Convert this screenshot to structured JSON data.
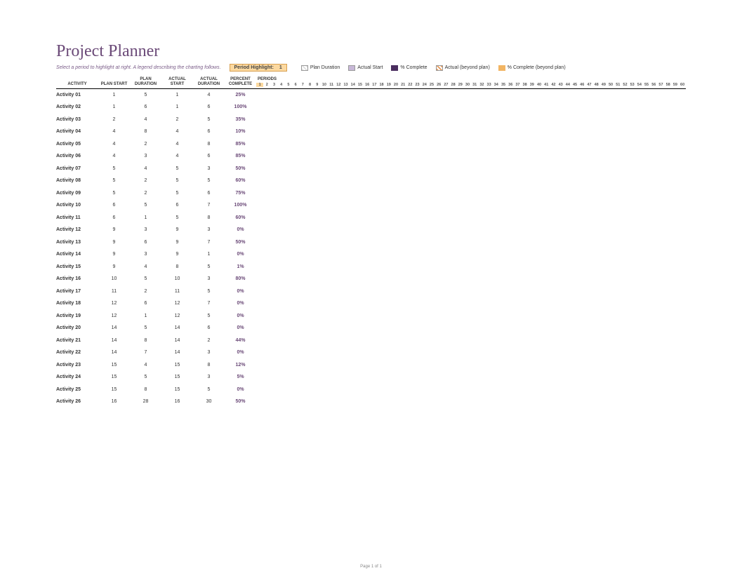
{
  "title": "Project Planner",
  "subtitle": "Select a period to highlight at right. A legend describing the charting follows.",
  "period_highlight": {
    "label": "Period Highlight:",
    "value": "1"
  },
  "legend": {
    "plan_duration": "Plan Duration",
    "actual_start": "Actual Start",
    "percent_complete": "% Complete",
    "actual_beyond": "Actual (beyond plan)",
    "percent_beyond": "% Complete (beyond plan)"
  },
  "columns": {
    "activity": "ACTIVITY",
    "plan_start": "PLAN START",
    "plan_duration": "PLAN DURATION",
    "actual_start": "ACTUAL START",
    "actual_duration": "ACTUAL DURATION",
    "percent_complete": "PERCENT COMPLETE",
    "periods": "PERIODS"
  },
  "period_count": 60,
  "highlighted_period": 1,
  "rows": [
    {
      "activity": "Activity 01",
      "plan_start": "1",
      "plan_duration": "5",
      "actual_start": "1",
      "actual_duration": "4",
      "percent": "25%"
    },
    {
      "activity": "Activity 02",
      "plan_start": "1",
      "plan_duration": "6",
      "actual_start": "1",
      "actual_duration": "6",
      "percent": "100%"
    },
    {
      "activity": "Activity 03",
      "plan_start": "2",
      "plan_duration": "4",
      "actual_start": "2",
      "actual_duration": "5",
      "percent": "35%"
    },
    {
      "activity": "Activity 04",
      "plan_start": "4",
      "plan_duration": "8",
      "actual_start": "4",
      "actual_duration": "6",
      "percent": "10%"
    },
    {
      "activity": "Activity 05",
      "plan_start": "4",
      "plan_duration": "2",
      "actual_start": "4",
      "actual_duration": "8",
      "percent": "85%"
    },
    {
      "activity": "Activity 06",
      "plan_start": "4",
      "plan_duration": "3",
      "actual_start": "4",
      "actual_duration": "6",
      "percent": "85%"
    },
    {
      "activity": "Activity 07",
      "plan_start": "5",
      "plan_duration": "4",
      "actual_start": "5",
      "actual_duration": "3",
      "percent": "50%"
    },
    {
      "activity": "Activity 08",
      "plan_start": "5",
      "plan_duration": "2",
      "actual_start": "5",
      "actual_duration": "5",
      "percent": "60%"
    },
    {
      "activity": "Activity 09",
      "plan_start": "5",
      "plan_duration": "2",
      "actual_start": "5",
      "actual_duration": "6",
      "percent": "75%"
    },
    {
      "activity": "Activity 10",
      "plan_start": "6",
      "plan_duration": "5",
      "actual_start": "6",
      "actual_duration": "7",
      "percent": "100%"
    },
    {
      "activity": "Activity 11",
      "plan_start": "6",
      "plan_duration": "1",
      "actual_start": "5",
      "actual_duration": "8",
      "percent": "60%"
    },
    {
      "activity": "Activity 12",
      "plan_start": "9",
      "plan_duration": "3",
      "actual_start": "9",
      "actual_duration": "3",
      "percent": "0%"
    },
    {
      "activity": "Activity 13",
      "plan_start": "9",
      "plan_duration": "6",
      "actual_start": "9",
      "actual_duration": "7",
      "percent": "50%"
    },
    {
      "activity": "Activity 14",
      "plan_start": "9",
      "plan_duration": "3",
      "actual_start": "9",
      "actual_duration": "1",
      "percent": "0%"
    },
    {
      "activity": "Activity 15",
      "plan_start": "9",
      "plan_duration": "4",
      "actual_start": "8",
      "actual_duration": "5",
      "percent": "1%"
    },
    {
      "activity": "Activity 16",
      "plan_start": "10",
      "plan_duration": "5",
      "actual_start": "10",
      "actual_duration": "3",
      "percent": "80%"
    },
    {
      "activity": "Activity 17",
      "plan_start": "11",
      "plan_duration": "2",
      "actual_start": "11",
      "actual_duration": "5",
      "percent": "0%"
    },
    {
      "activity": "Activity 18",
      "plan_start": "12",
      "plan_duration": "6",
      "actual_start": "12",
      "actual_duration": "7",
      "percent": "0%"
    },
    {
      "activity": "Activity 19",
      "plan_start": "12",
      "plan_duration": "1",
      "actual_start": "12",
      "actual_duration": "5",
      "percent": "0%"
    },
    {
      "activity": "Activity 20",
      "plan_start": "14",
      "plan_duration": "5",
      "actual_start": "14",
      "actual_duration": "6",
      "percent": "0%"
    },
    {
      "activity": "Activity 21",
      "plan_start": "14",
      "plan_duration": "8",
      "actual_start": "14",
      "actual_duration": "2",
      "percent": "44%"
    },
    {
      "activity": "Activity 22",
      "plan_start": "14",
      "plan_duration": "7",
      "actual_start": "14",
      "actual_duration": "3",
      "percent": "0%"
    },
    {
      "activity": "Activity 23",
      "plan_start": "15",
      "plan_duration": "4",
      "actual_start": "15",
      "actual_duration": "8",
      "percent": "12%"
    },
    {
      "activity": "Activity 24",
      "plan_start": "15",
      "plan_duration": "5",
      "actual_start": "15",
      "actual_duration": "3",
      "percent": "5%"
    },
    {
      "activity": "Activity 25",
      "plan_start": "15",
      "plan_duration": "8",
      "actual_start": "15",
      "actual_duration": "5",
      "percent": "0%"
    },
    {
      "activity": "Activity 26",
      "plan_start": "16",
      "plan_duration": "28",
      "actual_start": "16",
      "actual_duration": "30",
      "percent": "50%"
    }
  ],
  "footer_text": "Page 1 of 1",
  "styling": {
    "title_color": "#6b4a78",
    "title_fontsize": 24,
    "subtitle_color": "#7a5c88",
    "subtitle_fontsize": 7,
    "header_fontsize": 6,
    "cell_fontsize": 7,
    "percent_color": "#6b4a78",
    "highlight_bg": "#fcd9a0",
    "highlight_border": "#d8a050",
    "border_color": "#000000",
    "background": "#ffffff",
    "legend_swatch_colors": {
      "plan_duration": "#e0e0e0",
      "actual_start": "#c8b8d8",
      "percent_complete": "#4a2d5f",
      "actual_beyond": "#e89a5a",
      "percent_beyond": "#f2b563"
    }
  }
}
